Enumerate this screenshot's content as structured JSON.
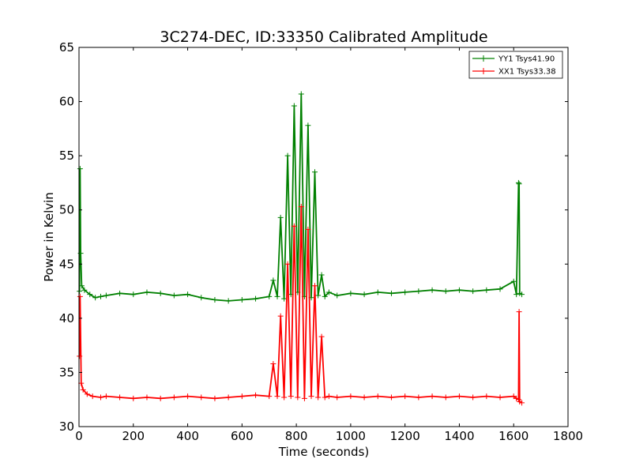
{
  "chart_data": {
    "type": "line",
    "title": "3C274-DEC, ID:33350 Calibrated Amplitude",
    "xlabel": "Time (seconds)",
    "ylabel": "Power in Kelvin",
    "xlim": [
      0,
      1800
    ],
    "ylim": [
      30,
      65
    ],
    "xticks": [
      0,
      200,
      400,
      600,
      800,
      1000,
      1200,
      1400,
      1600,
      1800
    ],
    "yticks": [
      30,
      35,
      40,
      45,
      50,
      55,
      60,
      65
    ],
    "grid": false,
    "legend_position": "top-right",
    "marker": "+",
    "series": [
      {
        "name": "YY1 Tsys41.90",
        "color": "#008000",
        "x": [
          2,
          4,
          6,
          10,
          20,
          40,
          60,
          80,
          100,
          150,
          200,
          250,
          300,
          350,
          400,
          450,
          500,
          550,
          600,
          650,
          700,
          715,
          730,
          742,
          755,
          768,
          780,
          792,
          805,
          818,
          830,
          843,
          855,
          868,
          880,
          893,
          905,
          920,
          950,
          1000,
          1050,
          1100,
          1150,
          1200,
          1250,
          1300,
          1350,
          1400,
          1450,
          1500,
          1550,
          1600,
          1610,
          1618,
          1620,
          1622,
          1630
        ],
        "y": [
          42.5,
          53.8,
          46.0,
          43.0,
          42.6,
          42.2,
          41.9,
          42.0,
          42.1,
          42.3,
          42.2,
          42.4,
          42.3,
          42.1,
          42.2,
          41.9,
          41.7,
          41.6,
          41.7,
          41.8,
          42.0,
          43.5,
          42.0,
          49.3,
          41.8,
          55.0,
          42.2,
          59.6,
          42.4,
          60.7,
          42.0,
          57.8,
          41.9,
          53.5,
          42.1,
          44.0,
          42.0,
          42.4,
          42.1,
          42.3,
          42.2,
          42.4,
          42.3,
          42.4,
          42.5,
          42.6,
          42.5,
          42.6,
          42.5,
          42.6,
          42.7,
          43.4,
          42.2,
          52.5,
          52.4,
          42.3,
          42.2
        ]
      },
      {
        "name": "XX1 Tsys33.38",
        "color": "#ff0000",
        "x": [
          2,
          4,
          8,
          15,
          30,
          50,
          80,
          100,
          150,
          200,
          250,
          300,
          350,
          400,
          450,
          500,
          550,
          600,
          650,
          700,
          715,
          730,
          742,
          755,
          768,
          780,
          792,
          805,
          818,
          830,
          843,
          855,
          868,
          880,
          893,
          905,
          920,
          950,
          1000,
          1050,
          1100,
          1150,
          1200,
          1250,
          1300,
          1350,
          1400,
          1450,
          1500,
          1550,
          1600,
          1610,
          1618,
          1620,
          1622,
          1630
        ],
        "y": [
          36.5,
          42.0,
          34.0,
          33.4,
          33.0,
          32.8,
          32.7,
          32.8,
          32.7,
          32.6,
          32.7,
          32.6,
          32.7,
          32.8,
          32.7,
          32.6,
          32.7,
          32.8,
          32.9,
          32.8,
          35.8,
          32.8,
          40.2,
          32.7,
          45.0,
          32.8,
          48.5,
          32.7,
          50.3,
          32.6,
          48.2,
          32.8,
          43.0,
          32.7,
          38.3,
          32.7,
          32.8,
          32.7,
          32.8,
          32.7,
          32.8,
          32.7,
          32.8,
          32.7,
          32.8,
          32.7,
          32.8,
          32.7,
          32.8,
          32.7,
          32.8,
          32.6,
          32.5,
          40.6,
          32.3,
          32.2
        ]
      }
    ]
  }
}
